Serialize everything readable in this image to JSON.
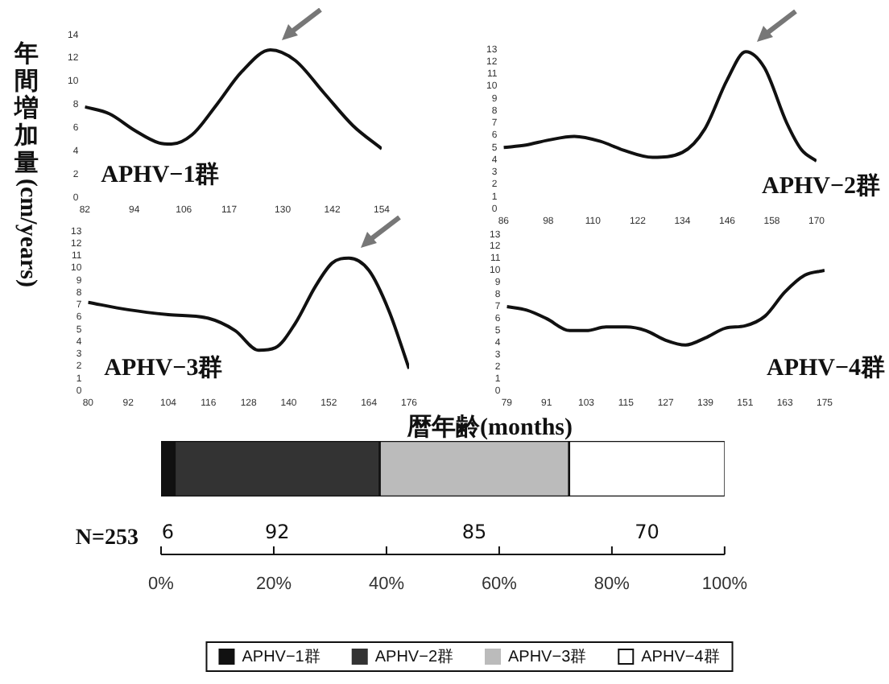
{
  "chart_data": [
    {
      "type": "line",
      "ylabel": "年間増加量(cm/years)",
      "marker": "none",
      "grid": false,
      "annotations": [
        "APHV−1群"
      ],
      "series": [
        {
          "color": "#111111",
          "x": [
            82,
            88,
            94,
            100,
            103,
            108,
            114,
            120,
            127,
            133,
            140,
            147,
            154
          ],
          "values": [
            7.8,
            7.2,
            5.8,
            4.7,
            4.6,
            5.4,
            8.0,
            10.8,
            12.7,
            11.8,
            9.0,
            6.2,
            4.2
          ]
        }
      ],
      "xlim": [
        82,
        154
      ],
      "xticks": [
        82,
        94,
        106,
        117,
        130,
        142,
        154
      ],
      "ylim": [
        0,
        14
      ],
      "yticks": [
        0,
        2,
        4,
        6,
        8,
        10,
        12,
        14
      ]
    },
    {
      "type": "line",
      "marker": "none",
      "grid": false,
      "annotations": [
        "APHV−2群"
      ],
      "series": [
        {
          "color": "#111111",
          "x": [
            86,
            92,
            98,
            105,
            112,
            118,
            126,
            134,
            140,
            146,
            151,
            156,
            162,
            166,
            170
          ],
          "values": [
            5.0,
            5.2,
            5.6,
            5.9,
            5.5,
            4.8,
            4.2,
            4.6,
            6.5,
            10.5,
            12.8,
            11.5,
            7.0,
            4.8,
            3.9
          ]
        }
      ],
      "xlim": [
        86,
        170
      ],
      "xticks": [
        86,
        98,
        110,
        122,
        134,
        146,
        158,
        170
      ],
      "ylim": [
        0,
        13
      ],
      "yticks": [
        0,
        1,
        2,
        3,
        4,
        5,
        6,
        7,
        8,
        9,
        10,
        11,
        12,
        13
      ]
    },
    {
      "type": "line",
      "marker": "none",
      "grid": false,
      "annotations": [
        "APHV−3群"
      ],
      "series": [
        {
          "color": "#111111",
          "x": [
            80,
            92,
            104,
            116,
            124,
            131,
            136,
            142,
            148,
            153,
            158,
            164,
            170,
            176
          ],
          "values": [
            7.2,
            6.6,
            6.2,
            5.9,
            4.9,
            3.3,
            3.5,
            5.5,
            8.5,
            10.4,
            10.8,
            9.8,
            6.5,
            1.8
          ]
        }
      ],
      "xlim": [
        80,
        176
      ],
      "xticks": [
        80,
        92,
        104,
        116,
        128,
        140,
        152,
        164,
        176
      ],
      "ylim": [
        0,
        13
      ],
      "yticks": [
        0,
        1,
        2,
        3,
        4,
        5,
        6,
        7,
        8,
        9,
        10,
        11,
        12,
        13
      ]
    },
    {
      "type": "line",
      "xlabel": "暦年齢(months)",
      "marker": "none",
      "grid": false,
      "annotations": [
        "APHV−4群"
      ],
      "series": [
        {
          "color": "#111111",
          "x": [
            79,
            85,
            91,
            98,
            103,
            109,
            115,
            121,
            127,
            133,
            139,
            145,
            151,
            157,
            163,
            169,
            175
          ],
          "values": [
            7.0,
            6.7,
            6.0,
            5.0,
            5.0,
            5.3,
            5.3,
            5.0,
            4.2,
            3.8,
            4.4,
            5.2,
            5.4,
            6.2,
            8.2,
            9.6,
            10.0
          ]
        }
      ],
      "xlim": [
        79,
        175
      ],
      "xticks": [
        79,
        91,
        103,
        115,
        127,
        139,
        151,
        163,
        175
      ],
      "ylim": [
        0,
        13
      ],
      "yticks": [
        0,
        1,
        2,
        3,
        4,
        5,
        6,
        7,
        8,
        9,
        10,
        11,
        12,
        13
      ]
    },
    {
      "type": "bar",
      "orientation": "horizontal",
      "stacked": true,
      "legend": "bottom",
      "tick_labels": "x",
      "grid": false,
      "annotations": [
        "N=253",
        "6",
        "92",
        "85",
        "70"
      ],
      "categories": [
        null
      ],
      "series": [
        {
          "name": "APHV−1群",
          "color": "#111111",
          "values": [
            2.4
          ]
        },
        {
          "name": "APHV−2群",
          "color": "#333333",
          "values": [
            36.4
          ]
        },
        {
          "name": "APHV−3群",
          "color": "#bbbbbb",
          "values": [
            33.6
          ]
        },
        {
          "name": "APHV−4群",
          "color": "#ffffff",
          "values": [
            27.7
          ]
        }
      ],
      "xlim": [
        0,
        100
      ],
      "xticks": [
        {
          "value": 0,
          "label": "0%"
        },
        {
          "value": 20,
          "label": "20%"
        },
        {
          "value": 40,
          "label": "40%"
        },
        {
          "value": 60,
          "label": "60%"
        },
        {
          "value": 80,
          "label": "80%"
        },
        {
          "value": 100,
          "label": "100%"
        }
      ]
    }
  ]
}
